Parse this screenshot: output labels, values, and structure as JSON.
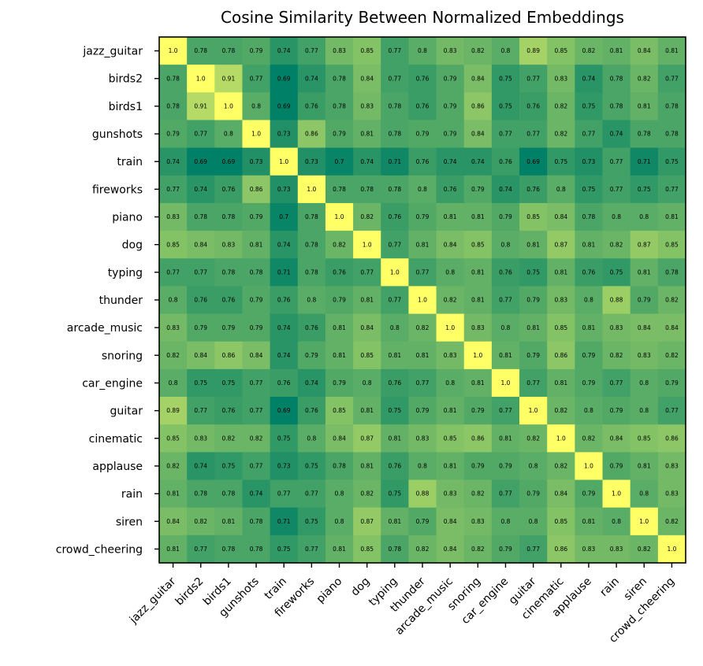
{
  "chart_data": {
    "type": "heatmap",
    "title": "Cosine Similarity Between Normalized Embeddings",
    "labels": [
      "jazz_guitar",
      "birds2",
      "birds1",
      "gunshots",
      "train",
      "fireworks",
      "piano",
      "dog",
      "typing",
      "thunder",
      "arcade_music",
      "snoring",
      "car_engine",
      "guitar",
      "cinematic",
      "applause",
      "rain",
      "siren",
      "crowd_cheering"
    ],
    "cell_text": [
      [
        "1.0",
        "0.78",
        "0.78",
        "0.79",
        "0.74",
        "0.77",
        "0.83",
        "0.85",
        "0.77",
        "0.8",
        "0.83",
        "0.82",
        "0.8",
        "0.89",
        "0.85",
        "0.82",
        "0.81",
        "0.84",
        "0.81"
      ],
      [
        "0.78",
        "1.0",
        "0.91",
        "0.77",
        "0.69",
        "0.74",
        "0.78",
        "0.84",
        "0.77",
        "0.76",
        "0.79",
        "0.84",
        "0.75",
        "0.77",
        "0.83",
        "0.74",
        "0.78",
        "0.82",
        "0.77"
      ],
      [
        "0.78",
        "0.91",
        "1.0",
        "0.8",
        "0.69",
        "0.76",
        "0.78",
        "0.83",
        "0.78",
        "0.76",
        "0.79",
        "0.86",
        "0.75",
        "0.76",
        "0.82",
        "0.75",
        "0.78",
        "0.81",
        "0.78"
      ],
      [
        "0.79",
        "0.77",
        "0.8",
        "1.0",
        "0.73",
        "0.86",
        "0.79",
        "0.81",
        "0.78",
        "0.79",
        "0.79",
        "0.84",
        "0.77",
        "0.77",
        "0.82",
        "0.77",
        "0.74",
        "0.78",
        "0.78"
      ],
      [
        "0.74",
        "0.69",
        "0.69",
        "0.73",
        "1.0",
        "0.73",
        "0.7",
        "0.74",
        "0.71",
        "0.76",
        "0.74",
        "0.74",
        "0.76",
        "0.69",
        "0.75",
        "0.73",
        "0.77",
        "0.71",
        "0.75"
      ],
      [
        "0.77",
        "0.74",
        "0.76",
        "0.86",
        "0.73",
        "1.0",
        "0.78",
        "0.78",
        "0.78",
        "0.8",
        "0.76",
        "0.79",
        "0.74",
        "0.76",
        "0.8",
        "0.75",
        "0.77",
        "0.75",
        "0.77"
      ],
      [
        "0.83",
        "0.78",
        "0.78",
        "0.79",
        "0.7",
        "0.78",
        "1.0",
        "0.82",
        "0.76",
        "0.79",
        "0.81",
        "0.81",
        "0.79",
        "0.85",
        "0.84",
        "0.78",
        "0.8",
        "0.8",
        "0.81"
      ],
      [
        "0.85",
        "0.84",
        "0.83",
        "0.81",
        "0.74",
        "0.78",
        "0.82",
        "1.0",
        "0.77",
        "0.81",
        "0.84",
        "0.85",
        "0.8",
        "0.81",
        "0.87",
        "0.81",
        "0.82",
        "0.87",
        "0.85"
      ],
      [
        "0.77",
        "0.77",
        "0.78",
        "0.78",
        "0.71",
        "0.78",
        "0.76",
        "0.77",
        "1.0",
        "0.77",
        "0.8",
        "0.81",
        "0.76",
        "0.75",
        "0.81",
        "0.76",
        "0.75",
        "0.81",
        "0.78"
      ],
      [
        "0.8",
        "0.76",
        "0.76",
        "0.79",
        "0.76",
        "0.8",
        "0.79",
        "0.81",
        "0.77",
        "1.0",
        "0.82",
        "0.81",
        "0.77",
        "0.79",
        "0.83",
        "0.8",
        "0.88",
        "0.79",
        "0.82"
      ],
      [
        "0.83",
        "0.79",
        "0.79",
        "0.79",
        "0.74",
        "0.76",
        "0.81",
        "0.84",
        "0.8",
        "0.82",
        "1.0",
        "0.83",
        "0.8",
        "0.81",
        "0.85",
        "0.81",
        "0.83",
        "0.84",
        "0.84"
      ],
      [
        "0.82",
        "0.84",
        "0.86",
        "0.84",
        "0.74",
        "0.79",
        "0.81",
        "0.85",
        "0.81",
        "0.81",
        "0.83",
        "1.0",
        "0.81",
        "0.79",
        "0.86",
        "0.79",
        "0.82",
        "0.83",
        "0.82"
      ],
      [
        "0.8",
        "0.75",
        "0.75",
        "0.77",
        "0.76",
        "0.74",
        "0.79",
        "0.8",
        "0.76",
        "0.77",
        "0.8",
        "0.81",
        "1.0",
        "0.77",
        "0.81",
        "0.79",
        "0.77",
        "0.8",
        "0.79"
      ],
      [
        "0.89",
        "0.77",
        "0.76",
        "0.77",
        "0.69",
        "0.76",
        "0.85",
        "0.81",
        "0.75",
        "0.79",
        "0.81",
        "0.79",
        "0.77",
        "1.0",
        "0.82",
        "0.8",
        "0.79",
        "0.8",
        "0.77"
      ],
      [
        "0.85",
        "0.83",
        "0.82",
        "0.82",
        "0.75",
        "0.8",
        "0.84",
        "0.87",
        "0.81",
        "0.83",
        "0.85",
        "0.86",
        "0.81",
        "0.82",
        "1.0",
        "0.82",
        "0.84",
        "0.85",
        "0.86"
      ],
      [
        "0.82",
        "0.74",
        "0.75",
        "0.77",
        "0.73",
        "0.75",
        "0.78",
        "0.81",
        "0.76",
        "0.8",
        "0.81",
        "0.79",
        "0.79",
        "0.8",
        "0.82",
        "1.0",
        "0.79",
        "0.81",
        "0.83"
      ],
      [
        "0.81",
        "0.78",
        "0.78",
        "0.74",
        "0.77",
        "0.77",
        "0.8",
        "0.82",
        "0.75",
        "0.88",
        "0.83",
        "0.82",
        "0.77",
        "0.79",
        "0.84",
        "0.79",
        "1.0",
        "0.8",
        "0.83"
      ],
      [
        "0.84",
        "0.82",
        "0.81",
        "0.78",
        "0.71",
        "0.75",
        "0.8",
        "0.87",
        "0.81",
        "0.79",
        "0.84",
        "0.83",
        "0.8",
        "0.8",
        "0.85",
        "0.81",
        "0.8",
        "1.0",
        "0.82"
      ],
      [
        "0.81",
        "0.77",
        "0.78",
        "0.78",
        "0.75",
        "0.77",
        "0.81",
        "0.85",
        "0.78",
        "0.82",
        "0.84",
        "0.82",
        "0.79",
        "0.77",
        "0.86",
        "0.83",
        "0.83",
        "0.82",
        "1.0"
      ]
    ],
    "colormap": "summer",
    "colormap_low": "#008066",
    "colormap_high": "#ffff66",
    "vmin": 0.69,
    "vmax": 1.0,
    "legend": "none"
  }
}
